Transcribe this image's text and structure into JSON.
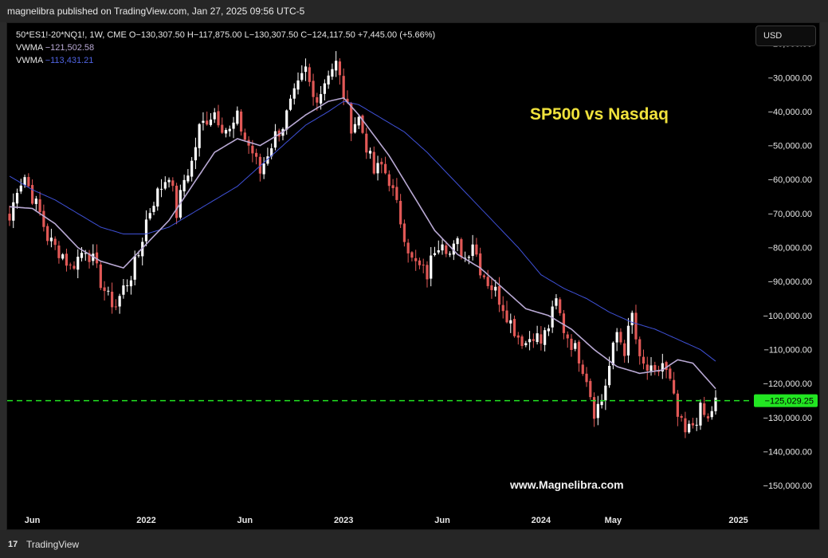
{
  "header": {
    "publisher": "magnelibra published on TradingView.com, Jan 27, 2025 09:56 UTC-5"
  },
  "legend": {
    "symbol_line": "50*ES1!-20*NQ1!, 1W, CME  O−130,307.50  H−117,875.00  L−130,307.50  C−124,117.50  +7,445.00 (+5.66%)",
    "vwma1_label": "VWMA",
    "vwma1_value": "−121,502.58",
    "vwma2_label": "VWMA",
    "vwma2_value": "−113,431.21"
  },
  "toolbar": {
    "currency_label": "USD"
  },
  "annotation": {
    "text": "SP500 vs Nasdaq"
  },
  "watermark": {
    "text": "www.Magnelibra.com"
  },
  "footer": {
    "logo_glyph": "17",
    "brand": "TradingView"
  },
  "colors": {
    "up": "#ffffff",
    "down": "#e15856",
    "vwma_fast": "#b9a9d4",
    "vwma_slow": "#3f51d8",
    "price_line": "#22e622",
    "axis_text": "#e6e6e6"
  },
  "chart_data": {
    "type": "candlestick",
    "ylim": [
      -157000,
      -14000
    ],
    "y_ticks": [
      -20000,
      -30000,
      -40000,
      -50000,
      -60000,
      -70000,
      -80000,
      -90000,
      -100000,
      -110000,
      -120000,
      -130000,
      -140000,
      -150000
    ],
    "y_tick_labels": [
      "−20,000.00",
      "−30,000.00",
      "−40,000.00",
      "−50,000.00",
      "−60,000.00",
      "−70,000.00",
      "−80,000.00",
      "−90,000.00",
      "−100,000.00",
      "−110,000.00",
      "−120,000.00",
      "−130,000.00",
      "−140,000.00",
      "−150,000.00"
    ],
    "x_ticks": [
      {
        "label": "Jun",
        "week": 6
      },
      {
        "label": "2022",
        "week": 36
      },
      {
        "label": "Jun",
        "week": 62
      },
      {
        "label": "2023",
        "week": 88
      },
      {
        "label": "Jun",
        "week": 114
      },
      {
        "label": "2024",
        "week": 140
      },
      {
        "label": "May",
        "week": 159
      },
      {
        "label": "2025",
        "week": 192
      }
    ],
    "current_price": -125029.25,
    "current_price_label": "−125,029.25",
    "close_anchors": [
      [
        0,
        -72000
      ],
      [
        2,
        -62000
      ],
      [
        4,
        -59000
      ],
      [
        6,
        -65000
      ],
      [
        8,
        -70000
      ],
      [
        10,
        -77000
      ],
      [
        12,
        -80000
      ],
      [
        14,
        -82000
      ],
      [
        16,
        -86000
      ],
      [
        18,
        -83000
      ],
      [
        20,
        -80000
      ],
      [
        22,
        -84000
      ],
      [
        24,
        -90000
      ],
      [
        26,
        -95000
      ],
      [
        28,
        -97000
      ],
      [
        30,
        -92000
      ],
      [
        32,
        -88000
      ],
      [
        34,
        -82000
      ],
      [
        36,
        -72000
      ],
      [
        38,
        -66000
      ],
      [
        40,
        -62000
      ],
      [
        42,
        -58000
      ],
      [
        44,
        -70000
      ],
      [
        46,
        -60000
      ],
      [
        48,
        -55000
      ],
      [
        50,
        -45000
      ],
      [
        52,
        -42000
      ],
      [
        54,
        -40000
      ],
      [
        56,
        -44000
      ],
      [
        58,
        -46000
      ],
      [
        60,
        -42000
      ],
      [
        62,
        -48000
      ],
      [
        64,
        -52000
      ],
      [
        66,
        -58000
      ],
      [
        68,
        -52000
      ],
      [
        70,
        -47000
      ],
      [
        72,
        -44000
      ],
      [
        74,
        -38000
      ],
      [
        76,
        -33000
      ],
      [
        78,
        -28000
      ],
      [
        80,
        -36000
      ],
      [
        82,
        -34000
      ],
      [
        84,
        -28000
      ],
      [
        86,
        -26000
      ],
      [
        88,
        -35000
      ],
      [
        90,
        -44000
      ],
      [
        92,
        -42000
      ],
      [
        94,
        -50000
      ],
      [
        96,
        -58000
      ],
      [
        98,
        -56000
      ],
      [
        100,
        -60000
      ],
      [
        102,
        -68000
      ],
      [
        104,
        -76000
      ],
      [
        106,
        -84000
      ],
      [
        108,
        -86000
      ],
      [
        110,
        -88000
      ],
      [
        112,
        -80000
      ],
      [
        114,
        -77000
      ],
      [
        116,
        -82000
      ],
      [
        118,
        -79000
      ],
      [
        120,
        -83000
      ],
      [
        122,
        -78000
      ],
      [
        124,
        -86000
      ],
      [
        126,
        -90000
      ],
      [
        128,
        -93000
      ],
      [
        130,
        -97000
      ],
      [
        132,
        -102000
      ],
      [
        134,
        -106000
      ],
      [
        136,
        -108000
      ],
      [
        138,
        -105000
      ],
      [
        140,
        -108000
      ],
      [
        142,
        -103000
      ],
      [
        144,
        -96000
      ],
      [
        146,
        -104000
      ],
      [
        148,
        -108000
      ],
      [
        150,
        -112000
      ],
      [
        152,
        -118000
      ],
      [
        154,
        -128000
      ],
      [
        156,
        -125000
      ],
      [
        158,
        -115000
      ],
      [
        160,
        -105000
      ],
      [
        162,
        -110000
      ],
      [
        164,
        -100000
      ],
      [
        166,
        -114000
      ],
      [
        168,
        -116000
      ],
      [
        170,
        -118000
      ],
      [
        172,
        -114000
      ],
      [
        174,
        -120000
      ],
      [
        176,
        -130000
      ],
      [
        178,
        -135000
      ],
      [
        180,
        -132000
      ],
      [
        182,
        -128000
      ],
      [
        184,
        -131000
      ],
      [
        186,
        -124117.5
      ]
    ],
    "vwma_fast_anchors": [
      [
        0,
        -68000
      ],
      [
        6,
        -68500
      ],
      [
        12,
        -73000
      ],
      [
        18,
        -80000
      ],
      [
        24,
        -84000
      ],
      [
        30,
        -86000
      ],
      [
        36,
        -79000
      ],
      [
        42,
        -72000
      ],
      [
        48,
        -62000
      ],
      [
        54,
        -52000
      ],
      [
        60,
        -48000
      ],
      [
        66,
        -50000
      ],
      [
        72,
        -46000
      ],
      [
        78,
        -41000
      ],
      [
        84,
        -37000
      ],
      [
        88,
        -36000
      ],
      [
        92,
        -41000
      ],
      [
        96,
        -47000
      ],
      [
        100,
        -53000
      ],
      [
        106,
        -64000
      ],
      [
        112,
        -75000
      ],
      [
        118,
        -82000
      ],
      [
        124,
        -86000
      ],
      [
        130,
        -92000
      ],
      [
        136,
        -98000
      ],
      [
        142,
        -100000
      ],
      [
        148,
        -104000
      ],
      [
        154,
        -110000
      ],
      [
        160,
        -115000
      ],
      [
        166,
        -117000
      ],
      [
        172,
        -116000
      ],
      [
        176,
        -113000
      ],
      [
        180,
        -114000
      ],
      [
        186,
        -121502.58
      ]
    ],
    "vwma_slow_anchors": [
      [
        0,
        -59000
      ],
      [
        6,
        -63000
      ],
      [
        12,
        -66000
      ],
      [
        18,
        -70000
      ],
      [
        24,
        -74000
      ],
      [
        30,
        -76000
      ],
      [
        36,
        -76000
      ],
      [
        42,
        -74000
      ],
      [
        48,
        -70000
      ],
      [
        54,
        -66000
      ],
      [
        60,
        -62000
      ],
      [
        66,
        -56000
      ],
      [
        72,
        -50000
      ],
      [
        78,
        -44000
      ],
      [
        84,
        -40000
      ],
      [
        88,
        -37000
      ],
      [
        92,
        -38000
      ],
      [
        98,
        -42000
      ],
      [
        104,
        -46000
      ],
      [
        110,
        -52000
      ],
      [
        116,
        -59000
      ],
      [
        122,
        -66000
      ],
      [
        128,
        -73000
      ],
      [
        134,
        -80000
      ],
      [
        140,
        -88000
      ],
      [
        146,
        -92000
      ],
      [
        152,
        -95000
      ],
      [
        158,
        -99000
      ],
      [
        164,
        -102000
      ],
      [
        170,
        -104000
      ],
      [
        176,
        -107000
      ],
      [
        182,
        -110000
      ],
      [
        186,
        -113431.21
      ]
    ]
  }
}
